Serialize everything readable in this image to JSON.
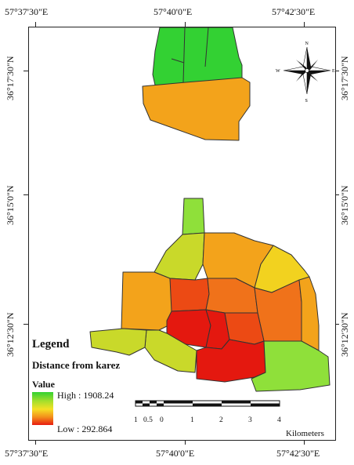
{
  "coordinates": {
    "top": [
      "57°37'30\"E",
      "57°40'0\"E",
      "57°42'30\"E"
    ],
    "bottom": [
      "57°37'30\"E",
      "57°40'0\"E",
      "57°42'30\"E"
    ],
    "left": [
      "36°17'30\"N",
      "36°15'0\"N",
      "36°12'30\"N"
    ],
    "right": [
      "36°17'30\"N",
      "36°15'0\"N",
      "36°12'30\"N"
    ]
  },
  "legend": {
    "title": "Legend",
    "subtitle": "Distance from  karez",
    "value_label": "Value",
    "high": "High : 1908.24",
    "low": "Low : 292.864",
    "ramp_colors": [
      "#33d133",
      "#a6df2c",
      "#f5e024",
      "#f38f1b",
      "#e71b11"
    ]
  },
  "scale_bar": {
    "ticks": [
      "1",
      "0.5",
      "0",
      "1",
      "2",
      "3",
      "4"
    ],
    "unit": "Kilometers"
  },
  "north_arrow": {
    "letters": [
      "N",
      "E",
      "S",
      "W"
    ]
  },
  "colors": {
    "green": "#33d133",
    "light_green": "#8fe03a",
    "yellow_green": "#c9d92a",
    "yellow": "#f2d21f",
    "orange": "#f3a31b",
    "dark_orange": "#f0721a",
    "red_orange": "#ec4a14",
    "red": "#e4180f"
  }
}
